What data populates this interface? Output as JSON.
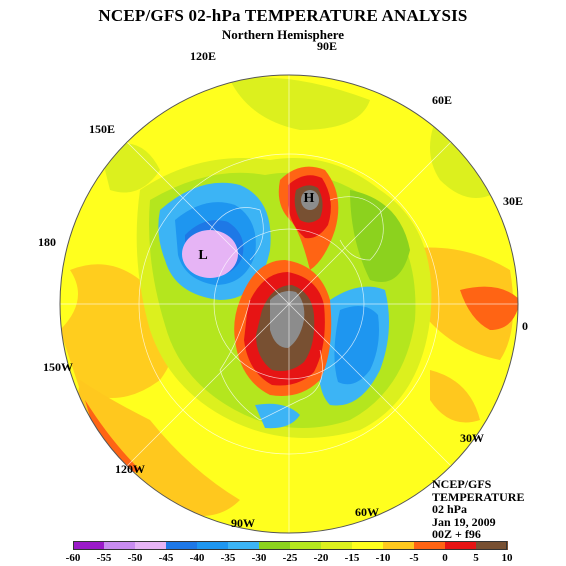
{
  "title": "NCEP/GFS 02-hPa TEMPERATURE ANALYSIS",
  "subtitle": "Northern Hemisphere",
  "longitude_labels": {
    "e90": "90E",
    "e120": "120E",
    "e60": "60E",
    "e150": "150E",
    "e30": "30E",
    "d180": "180",
    "zero": "0",
    "w150": "150W",
    "w30": "30W",
    "w120": "120W",
    "w60": "60W",
    "w90": "90W"
  },
  "markers": {
    "high": "H",
    "low": "L"
  },
  "info": {
    "line1": "NCEP/GFS",
    "line2": "TEMPERATURE",
    "line3": "02 hPa",
    "line4": "Jan 19, 2009",
    "line5": "00Z + f96"
  },
  "colorbar": {
    "ticks": [
      "-60",
      "-55",
      "-50",
      "-45",
      "-40",
      "-35",
      "-30",
      "-25",
      "-20",
      "-15",
      "-10",
      "-5",
      "0",
      "5",
      "10"
    ],
    "colors": [
      "#9a1ac8",
      "#c88cf0",
      "#e6b4f5",
      "#1e78e6",
      "#1e96f0",
      "#3cb4f5",
      "#8cd21e",
      "#b4e61e",
      "#dcf01e",
      "#ffff1e",
      "#ffc81e",
      "#ff6414",
      "#e61414",
      "#785032",
      "#8c8c8c"
    ]
  }
}
